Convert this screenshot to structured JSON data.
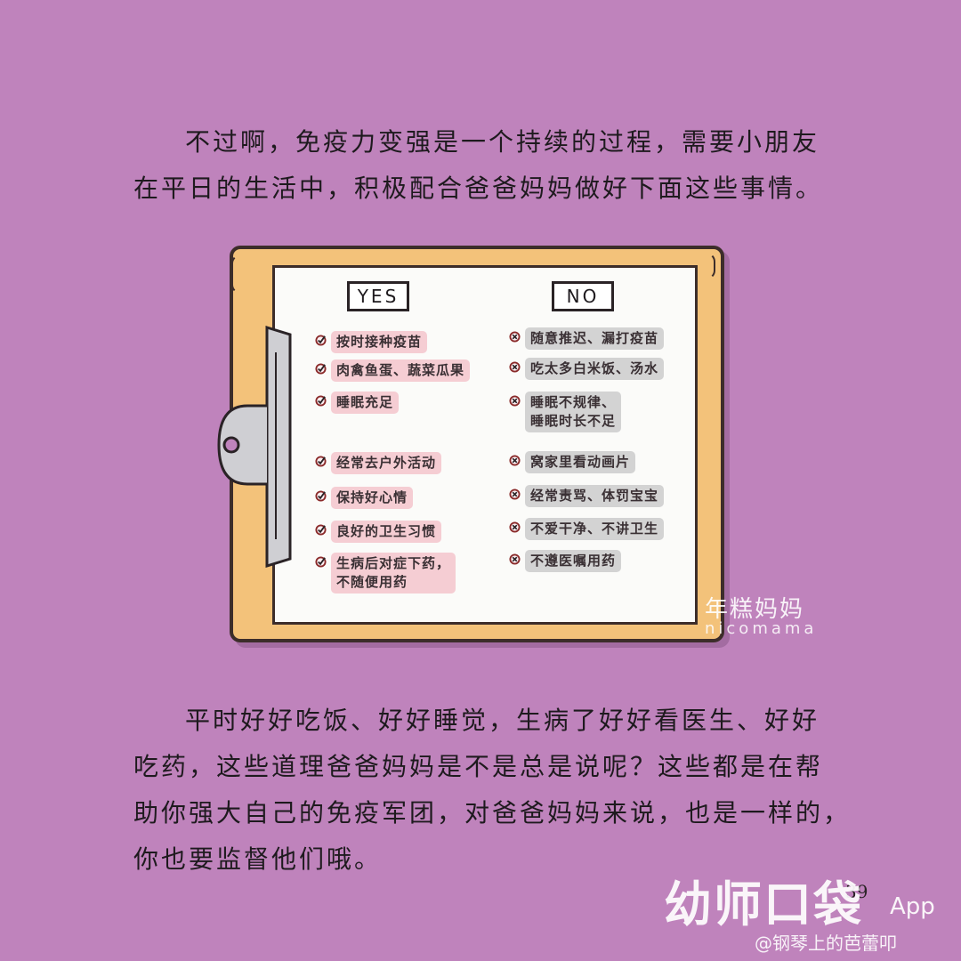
{
  "intro_lines": [
    "不过啊，免疫力变强是一个持续的过程，需要小朋友",
    "在平日的生活中，积极配合爸爸妈妈做好下面这些事情。"
  ],
  "checklist": {
    "yes_label": "YES",
    "no_label": "NO",
    "yes_items": [
      [
        "按时接种疫苗"
      ],
      [
        "肉禽鱼蛋、蔬菜瓜果"
      ],
      [
        "睡眠充足"
      ],
      [
        "经常去户外活动"
      ],
      [
        "保持好心情"
      ],
      [
        "良好的卫生习惯"
      ],
      [
        "生病后对症下药，",
        "不随便用药"
      ]
    ],
    "no_items": [
      [
        "随意推迟、漏打疫苗"
      ],
      [
        "吃太多白米饭、汤水"
      ],
      [
        "睡眠不规律、",
        "睡眠时长不足"
      ],
      [
        "窝家里看动画片"
      ],
      [
        "经常责骂、体罚宝宝"
      ],
      [
        "不爱干净、不讲卫生"
      ],
      [
        "不遵医嘱用药"
      ]
    ]
  },
  "watermark_cake": "年糕妈妈",
  "watermark_cake_sub": "nicomama",
  "outro_lines": [
    "平时好好吃饭、好好睡觉，生病了好好看医生、好好",
    "吃药，这些道理爸爸妈妈是不是总是说呢？这些都是在帮",
    "助你强大自己的免疫军团，对爸爸妈妈来说，也是一样的，",
    "你也要监督他们哦。"
  ],
  "page_number": "39",
  "watermark_app": "幼师口袋",
  "watermark_app_suffix": "App",
  "watermark_user": "@钢琴上的芭蕾叩",
  "colors": {
    "background": "#bf83bc",
    "board": "#f3c27a",
    "yes_pill": "#f5cdd3",
    "no_pill": "#d3d3d3",
    "bullet": "#8a2a2a"
  }
}
